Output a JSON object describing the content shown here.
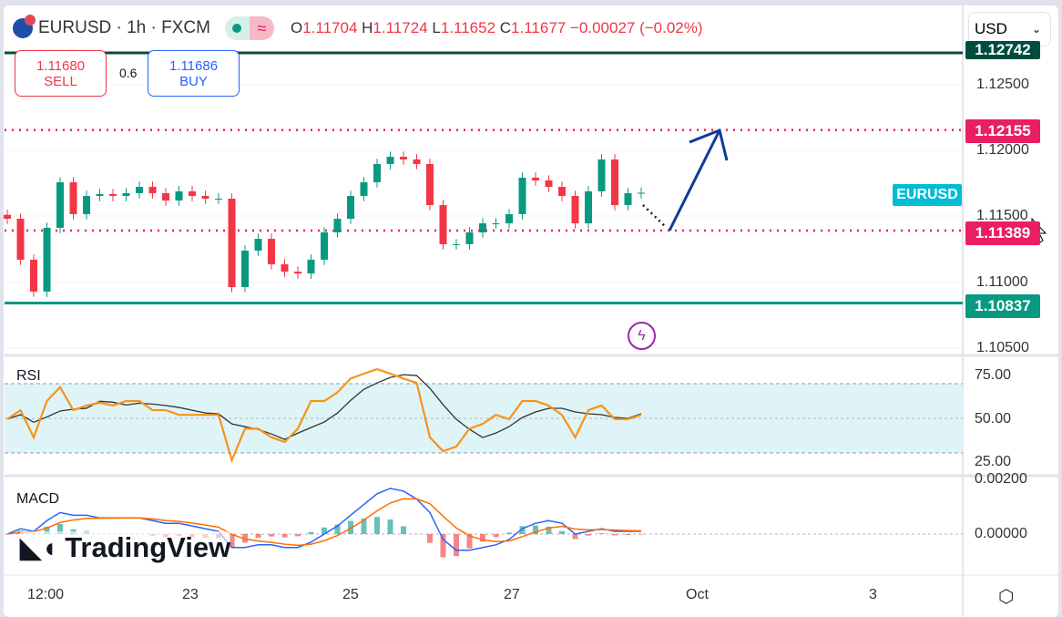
{
  "header": {
    "symbol": "EURUSD · 1h · FXCM",
    "open_label": "O",
    "open": "1.11704",
    "high_label": "H",
    "high": "1.11724",
    "low_label": "L",
    "low": "1.11652",
    "close_label": "C",
    "close": "1.11677",
    "change": "−0.00027 (−0.02%)"
  },
  "trade": {
    "sell_price": "1.11680",
    "sell_label": "SELL",
    "spread": "0.6",
    "buy_price": "1.11686",
    "buy_label": "BUY"
  },
  "currency": "USD",
  "price_axis": [
    "1.12500",
    "1.12000",
    "1.11500",
    "1.11000",
    "1.10500"
  ],
  "tags": {
    "top": "1.12742",
    "resistance": "1.12155",
    "support_dotted": "1.11389",
    "support": "1.10837",
    "symbol": "EURUSD"
  },
  "rsi": {
    "label": "RSI",
    "ticks": [
      "75.00",
      "50.00",
      "25.00"
    ]
  },
  "macd": {
    "label": "MACD",
    "ticks": [
      "0.00200",
      "0.00000"
    ]
  },
  "time_axis": [
    "12:00",
    "23",
    "25",
    "27",
    "Oct",
    "3"
  ],
  "logo": "TradingView",
  "colors": {
    "up": "#089981",
    "down": "#f23645",
    "accent": "#2962ff",
    "rsi": "#f7931a"
  },
  "chart_data": {
    "type": "candlestick",
    "title": "EURUSD 1h FXCM",
    "ylim": [
      1.1035,
      1.1285
    ],
    "closes": [
      1.11479,
      1.11167,
      1.10924,
      1.1141,
      1.11757,
      1.11514,
      1.11653,
      1.11667,
      1.11653,
      1.11674,
      1.11722,
      1.11674,
      1.11618,
      1.11688,
      1.11653,
      1.11632,
      1.11632,
      1.10958,
      1.11236,
      1.11326,
      1.11132,
      1.11076,
      1.11062,
      1.11167,
      1.11375,
      1.11479,
      1.11653,
      1.11757,
      1.11896,
      1.11951,
      1.11931,
      1.11896,
      1.11583,
      1.11285,
      1.11285,
      1.11375,
      1.11444,
      1.11444,
      1.11514,
      1.11792,
      1.11771,
      1.11722,
      1.11653,
      1.11444,
      1.11688,
      1.11931,
      1.11583,
      1.11674,
      1.11677
    ],
    "horizontal_levels": [
      1.12742,
      1.12155,
      1.11389,
      1.10837
    ],
    "rsi": [
      49.5,
      54.7,
      39,
      60,
      68,
      54.7,
      57.4,
      59,
      57.4,
      60,
      60,
      54.7,
      54.7,
      52,
      52,
      52,
      52,
      25.8,
      44,
      44,
      39,
      36.3,
      44,
      60,
      60,
      65,
      73,
      75.8,
      78.4,
      75.8,
      73,
      70.5,
      39,
      31,
      33.7,
      44,
      46.8,
      52,
      49.5,
      60,
      60,
      57.4,
      52,
      39,
      54.7,
      57.4,
      49.5,
      49.5,
      52
    ],
    "macd": [
      0,
      0.0002,
      0.0001,
      0.0005,
      0.0008,
      0.0007,
      0.0007,
      0.0006,
      0.0006,
      0.0006,
      0.0006,
      0.0005,
      0.0004,
      0.0004,
      0.0003,
      0.0002,
      0.0001,
      -0.0005,
      -0.0005,
      -0.0004,
      -0.0004,
      -0.0005,
      -0.0005,
      -0.0003,
      0,
      0.0003,
      0.0007,
      0.0011,
      0.0015,
      0.0017,
      0.0016,
      0.0013,
      0.0008,
      -0.0002,
      -0.0006,
      -0.0006,
      -0.0005,
      -0.0004,
      -0.0002,
      0.0002,
      0.0004,
      0.0005,
      0.0004,
      0,
      0.0001,
      0.0002,
      0.0001,
      0.0001,
      0.0001
    ]
  }
}
